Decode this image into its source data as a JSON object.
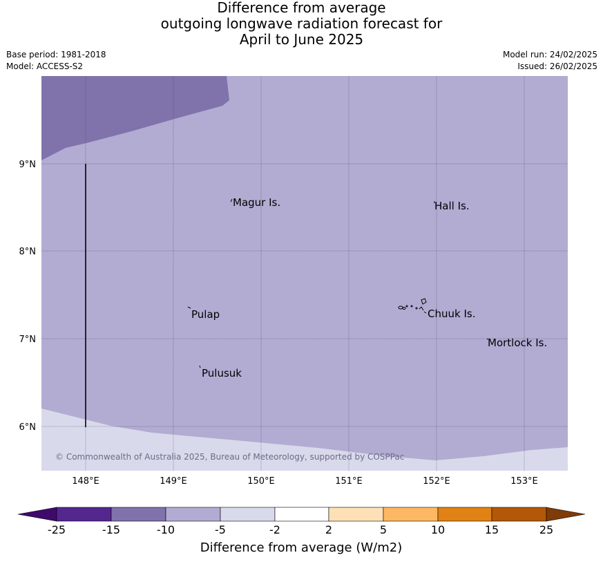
{
  "title": {
    "line1": "Difference from average",
    "line2": "outgoing longwave radiation forecast for",
    "line3": "April to June 2025"
  },
  "meta": {
    "base_period": "Base period: 1981-2018",
    "model": "Model: ACCESS-S2",
    "model_run": "Model run: 24/02/2025",
    "issued": "Issued: 26/02/2025"
  },
  "map": {
    "lon_ticks": [
      "148°E",
      "149°E",
      "150°E",
      "151°E",
      "152°E",
      "153°E"
    ],
    "lat_ticks": [
      "9°N",
      "8°N",
      "7°N",
      "6°N"
    ],
    "places": [
      {
        "name": "Magur Is."
      },
      {
        "name": "Hall Is."
      },
      {
        "name": "Pulap"
      },
      {
        "name": "Chuuk Is."
      },
      {
        "name": "Mortlock Is."
      },
      {
        "name": "Pulusuk"
      }
    ],
    "copyright": "© Commonwealth of Australia 2025, Bureau of Meteorology, supported by COSPPac"
  },
  "colorbar": {
    "ticks": [
      "-25",
      "-15",
      "-10",
      "-5",
      "-2",
      "2",
      "5",
      "10",
      "15",
      "25"
    ],
    "label": "Difference from average (W/m2)",
    "colors": {
      "lt_-25": "#3f0a6b",
      "m25_m15": "#54278f",
      "m15_m10": "#8073ac",
      "m10_m5": "#b2abd2",
      "m5_m2": "#d8daeb",
      "m2_2": "#ffffff",
      "2_5": "#fee0b6",
      "5_10": "#fdb863",
      "10_15": "#e08214",
      "15_25": "#b35806",
      "gt_25": "#7f3b08"
    }
  }
}
